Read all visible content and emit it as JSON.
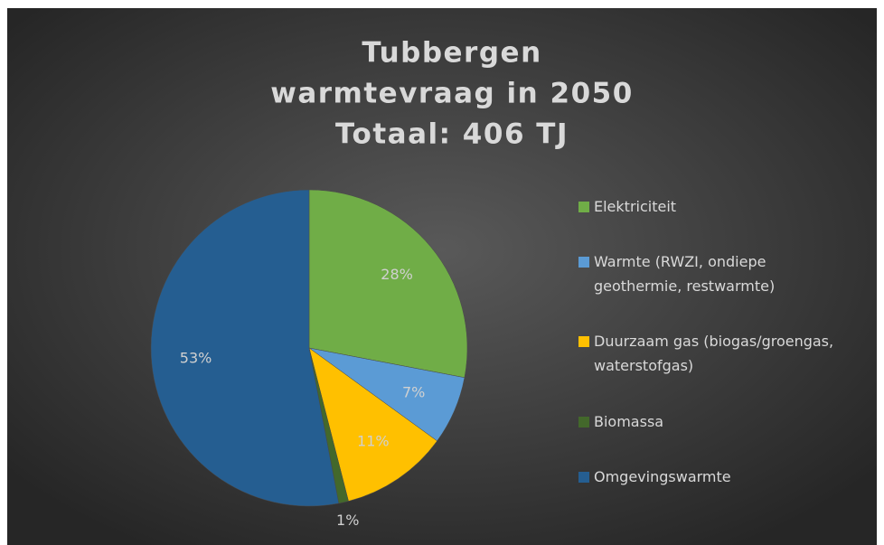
{
  "chart_data": {
    "type": "pie",
    "title": [
      "Tubbergen",
      "warmtevraag in 2050",
      "Totaal: 406 TJ"
    ],
    "categories": [
      "Elektriciteit",
      "Warmte (RWZI, ondiepe geothermie, restwarmte)",
      "Duurzaam gas (biogas/groengas, waterstofgas)",
      "Biomassa",
      "Omgevingswarmte"
    ],
    "values": [
      28,
      7,
      11,
      1,
      53
    ],
    "value_labels": [
      "28%",
      "7%",
      "11%",
      "1%",
      "53%"
    ],
    "colors": [
      "#70ad47",
      "#5b9bd5",
      "#ffc000",
      "#43682b",
      "#255e91"
    ],
    "legend": "right"
  }
}
